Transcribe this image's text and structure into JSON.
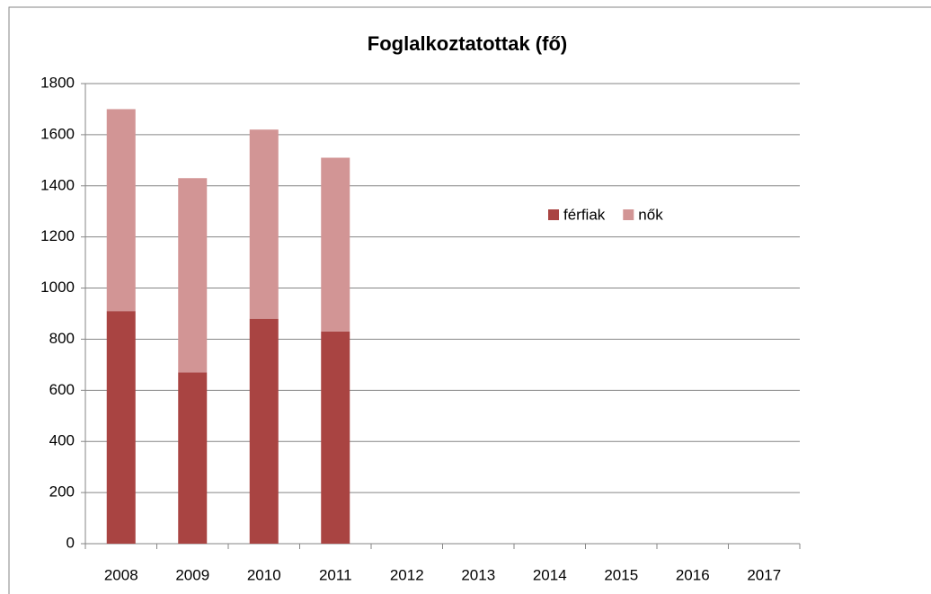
{
  "chart_data": {
    "type": "bar",
    "stacked": true,
    "title": "Foglalkoztatottak (fő)",
    "categories": [
      "2008",
      "2009",
      "2010",
      "2011",
      "2012",
      "2013",
      "2014",
      "2015",
      "2016",
      "2017"
    ],
    "series": [
      {
        "name": "férfiak",
        "color": "#a94442",
        "values": [
          910,
          670,
          880,
          830,
          null,
          null,
          null,
          null,
          null,
          null
        ]
      },
      {
        "name": "nők",
        "color": "#d29595",
        "values": [
          790,
          760,
          740,
          680,
          null,
          null,
          null,
          null,
          null,
          null
        ]
      }
    ],
    "ylim": [
      0,
      1800
    ],
    "yticks": [
      0,
      200,
      400,
      600,
      800,
      1000,
      1200,
      1400,
      1600,
      1800
    ],
    "grid": true,
    "legend": "right"
  }
}
